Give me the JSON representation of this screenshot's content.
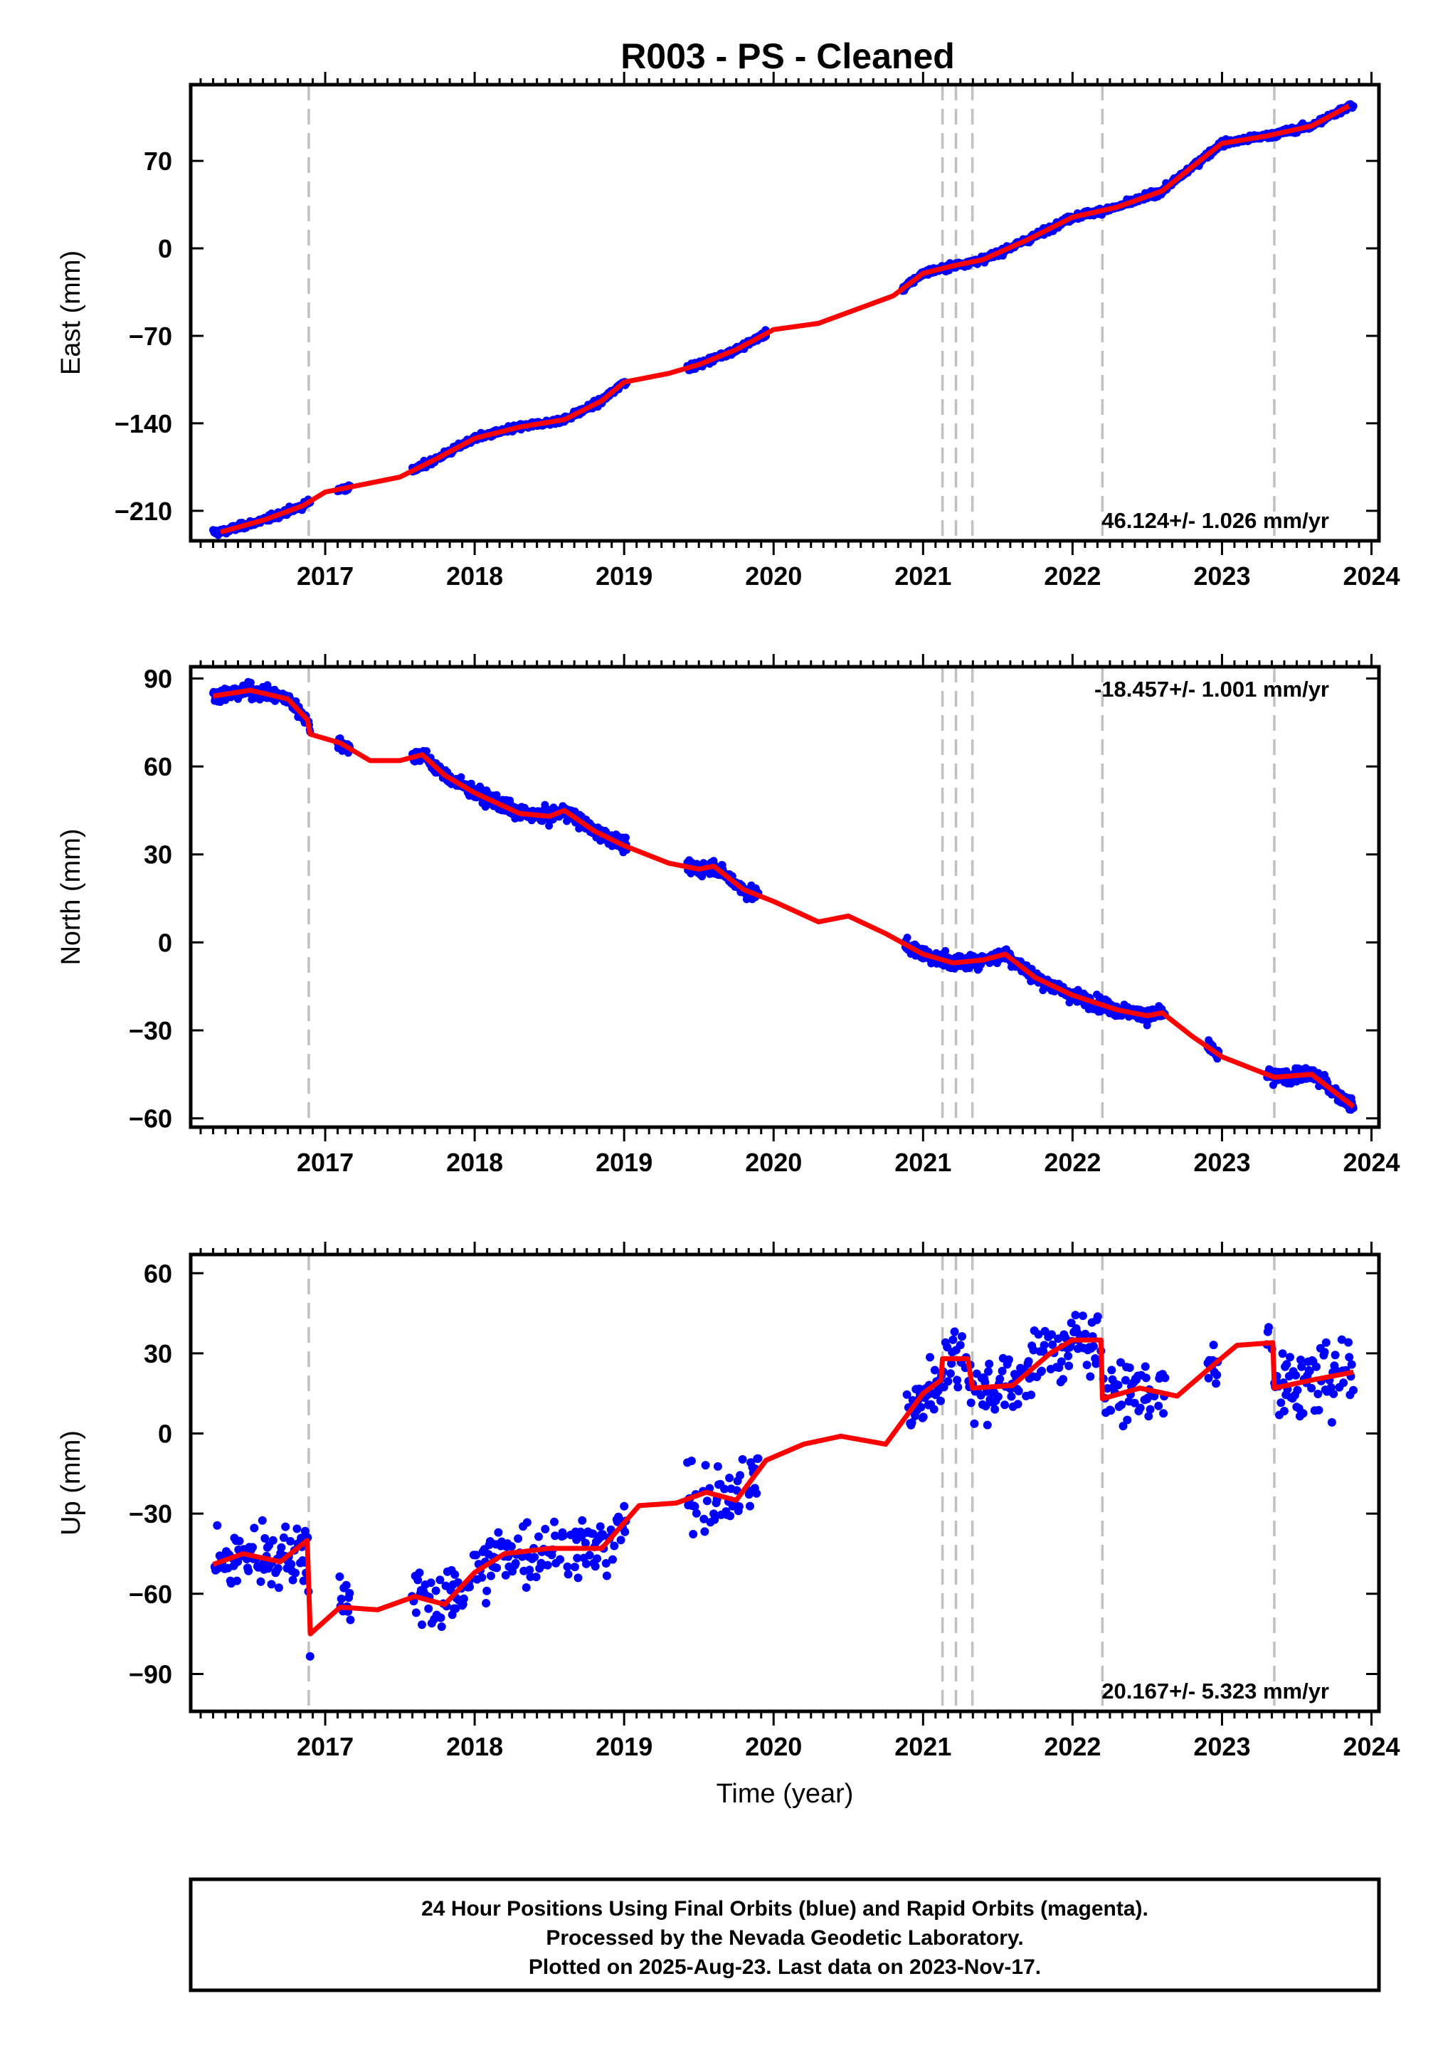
{
  "title": "R003  - PS - Cleaned",
  "footer": {
    "line1": "24 Hour Positions Using Final Orbits (blue) and Rapid Orbits (magenta).",
    "line2": "Processed by the Nevada Geodetic Laboratory.",
    "line3": "Plotted on 2025-Aug-23. Last data on 2023-Nov-17."
  },
  "colors": {
    "final_orbits": "#0000ff",
    "model": "#ff0000",
    "steps": "#c0c0c0",
    "frame": "#000000"
  },
  "chart_data": [
    {
      "type": "scatter",
      "component": "East",
      "ylabel": "East (mm)",
      "xlabel": "",
      "xlim": [
        2016.1,
        2024.05
      ],
      "ylim": [
        -234,
        131
      ],
      "yticks": [
        -210,
        -140,
        -70,
        0,
        70
      ],
      "xticks": [
        2017,
        2018,
        2019,
        2020,
        2021,
        2022,
        2023,
        2024
      ],
      "velocity_label": "46.124+/- 1.026 mm/yr",
      "velocity_position": "bottom-right",
      "step_epochs": [
        2016.89,
        2021.13,
        2021.22,
        2021.33,
        2022.2,
        2023.35
      ],
      "data_gaps": [
        [
          2016.9,
          2017.08
        ],
        [
          2017.17,
          2017.58
        ],
        [
          2019.02,
          2019.42
        ],
        [
          2019.9,
          2020.88
        ]
      ],
      "model_trend": [
        [
          2016.3,
          -227
        ],
        [
          2016.6,
          -217
        ],
        [
          2016.85,
          -206
        ],
        [
          2017.0,
          -195
        ],
        [
          2017.5,
          -183
        ],
        [
          2017.75,
          -168
        ],
        [
          2018.0,
          -152
        ],
        [
          2018.3,
          -143
        ],
        [
          2018.6,
          -137
        ],
        [
          2018.85,
          -122
        ],
        [
          2019.0,
          -107
        ],
        [
          2019.3,
          -100
        ],
        [
          2019.5,
          -93
        ],
        [
          2019.75,
          -81
        ],
        [
          2020.0,
          -65
        ],
        [
          2020.3,
          -60
        ],
        [
          2020.8,
          -38
        ],
        [
          2021.0,
          -20
        ],
        [
          2021.2,
          -14
        ],
        [
          2021.4,
          -9
        ],
        [
          2021.7,
          7
        ],
        [
          2022.0,
          25
        ],
        [
          2022.3,
          33
        ],
        [
          2022.6,
          46
        ],
        [
          2022.85,
          70
        ],
        [
          2023.0,
          84
        ],
        [
          2023.3,
          90
        ],
        [
          2023.6,
          98
        ],
        [
          2023.85,
          114
        ]
      ],
      "series": [
        {
          "name": "",
          "x_range": [
            2016.25,
            2023.88
          ],
          "points_sampled": "dense daily positions"
        }
      ]
    },
    {
      "type": "scatter",
      "component": "North",
      "ylabel": "North (mm)",
      "xlabel": "",
      "xlim": [
        2016.1,
        2024.05
      ],
      "ylim": [
        -63,
        94
      ],
      "yticks": [
        -60,
        -30,
        0,
        30,
        60,
        90
      ],
      "xticks": [
        2017,
        2018,
        2019,
        2020,
        2021,
        2022,
        2023,
        2024
      ],
      "velocity_label": "-18.457+/- 1.001 mm/yr",
      "velocity_position": "top-right",
      "step_epochs": [
        2016.89,
        2021.13,
        2021.22,
        2021.33,
        2022.2,
        2023.35
      ],
      "model_trend": [
        [
          2016.25,
          84
        ],
        [
          2016.5,
          86
        ],
        [
          2016.75,
          83
        ],
        [
          2016.88,
          76
        ],
        [
          2016.9,
          71
        ],
        [
          2017.1,
          68
        ],
        [
          2017.3,
          62
        ],
        [
          2017.5,
          62
        ],
        [
          2017.65,
          64
        ],
        [
          2017.8,
          57
        ],
        [
          2018.0,
          51
        ],
        [
          2018.3,
          44
        ],
        [
          2018.5,
          43
        ],
        [
          2018.6,
          45
        ],
        [
          2018.8,
          38
        ],
        [
          2019.0,
          33
        ],
        [
          2019.3,
          27
        ],
        [
          2019.5,
          25
        ],
        [
          2019.6,
          26
        ],
        [
          2019.8,
          18
        ],
        [
          2020.0,
          14
        ],
        [
          2020.3,
          7
        ],
        [
          2020.5,
          9
        ],
        [
          2020.75,
          3
        ],
        [
          2021.0,
          -4
        ],
        [
          2021.2,
          -7
        ],
        [
          2021.4,
          -6
        ],
        [
          2021.55,
          -4
        ],
        [
          2021.75,
          -12
        ],
        [
          2022.0,
          -18
        ],
        [
          2022.3,
          -23
        ],
        [
          2022.5,
          -25
        ],
        [
          2022.6,
          -24
        ],
        [
          2022.8,
          -32
        ],
        [
          2023.0,
          -39
        ],
        [
          2023.35,
          -46
        ],
        [
          2023.6,
          -45
        ],
        [
          2023.88,
          -56
        ]
      ],
      "series": [
        {
          "name": "",
          "x_range": [
            2016.25,
            2023.88
          ],
          "points_sampled": "dense daily positions"
        }
      ]
    },
    {
      "type": "scatter",
      "component": "Up",
      "ylabel": "Up (mm)",
      "xlabel": "Time (year)",
      "xlim": [
        2016.1,
        2024.05
      ],
      "ylim": [
        -104,
        67
      ],
      "yticks": [
        -90,
        -60,
        -30,
        0,
        30,
        60
      ],
      "xticks": [
        2017,
        2018,
        2019,
        2020,
        2021,
        2022,
        2023,
        2024
      ],
      "velocity_label": "20.167+/- 5.323 mm/yr",
      "velocity_position": "bottom-right",
      "step_epochs": [
        2016.89,
        2021.13,
        2021.22,
        2021.33,
        2022.2,
        2023.35
      ],
      "model_trend": [
        [
          2016.25,
          -49
        ],
        [
          2016.45,
          -45
        ],
        [
          2016.7,
          -48
        ],
        [
          2016.88,
          -40
        ],
        [
          2016.9,
          -75
        ],
        [
          2017.1,
          -65
        ],
        [
          2017.35,
          -66
        ],
        [
          2017.6,
          -61
        ],
        [
          2017.8,
          -64
        ],
        [
          2018.0,
          -52
        ],
        [
          2018.2,
          -45
        ],
        [
          2018.5,
          -43
        ],
        [
          2018.7,
          -43
        ],
        [
          2018.85,
          -43
        ],
        [
          2019.1,
          -27
        ],
        [
          2019.35,
          -26
        ],
        [
          2019.55,
          -22
        ],
        [
          2019.75,
          -25
        ],
        [
          2019.95,
          -10
        ],
        [
          2020.2,
          -4
        ],
        [
          2020.45,
          -1
        ],
        [
          2020.75,
          -4
        ],
        [
          2021.0,
          15
        ],
        [
          2021.12,
          20
        ],
        [
          2021.13,
          28
        ],
        [
          2021.3,
          28
        ],
        [
          2021.33,
          17
        ],
        [
          2021.6,
          18
        ],
        [
          2021.85,
          30
        ],
        [
          2022.0,
          35
        ],
        [
          2022.19,
          35
        ],
        [
          2022.2,
          13
        ],
        [
          2022.45,
          17
        ],
        [
          2022.7,
          14
        ],
        [
          2022.95,
          26
        ],
        [
          2023.1,
          33
        ],
        [
          2023.34,
          34
        ],
        [
          2023.35,
          17
        ],
        [
          2023.6,
          20
        ],
        [
          2023.88,
          23
        ]
      ],
      "series": [
        {
          "name": "",
          "x_range": [
            2016.25,
            2023.88
          ],
          "points_sampled": "dense daily positions"
        }
      ]
    }
  ]
}
